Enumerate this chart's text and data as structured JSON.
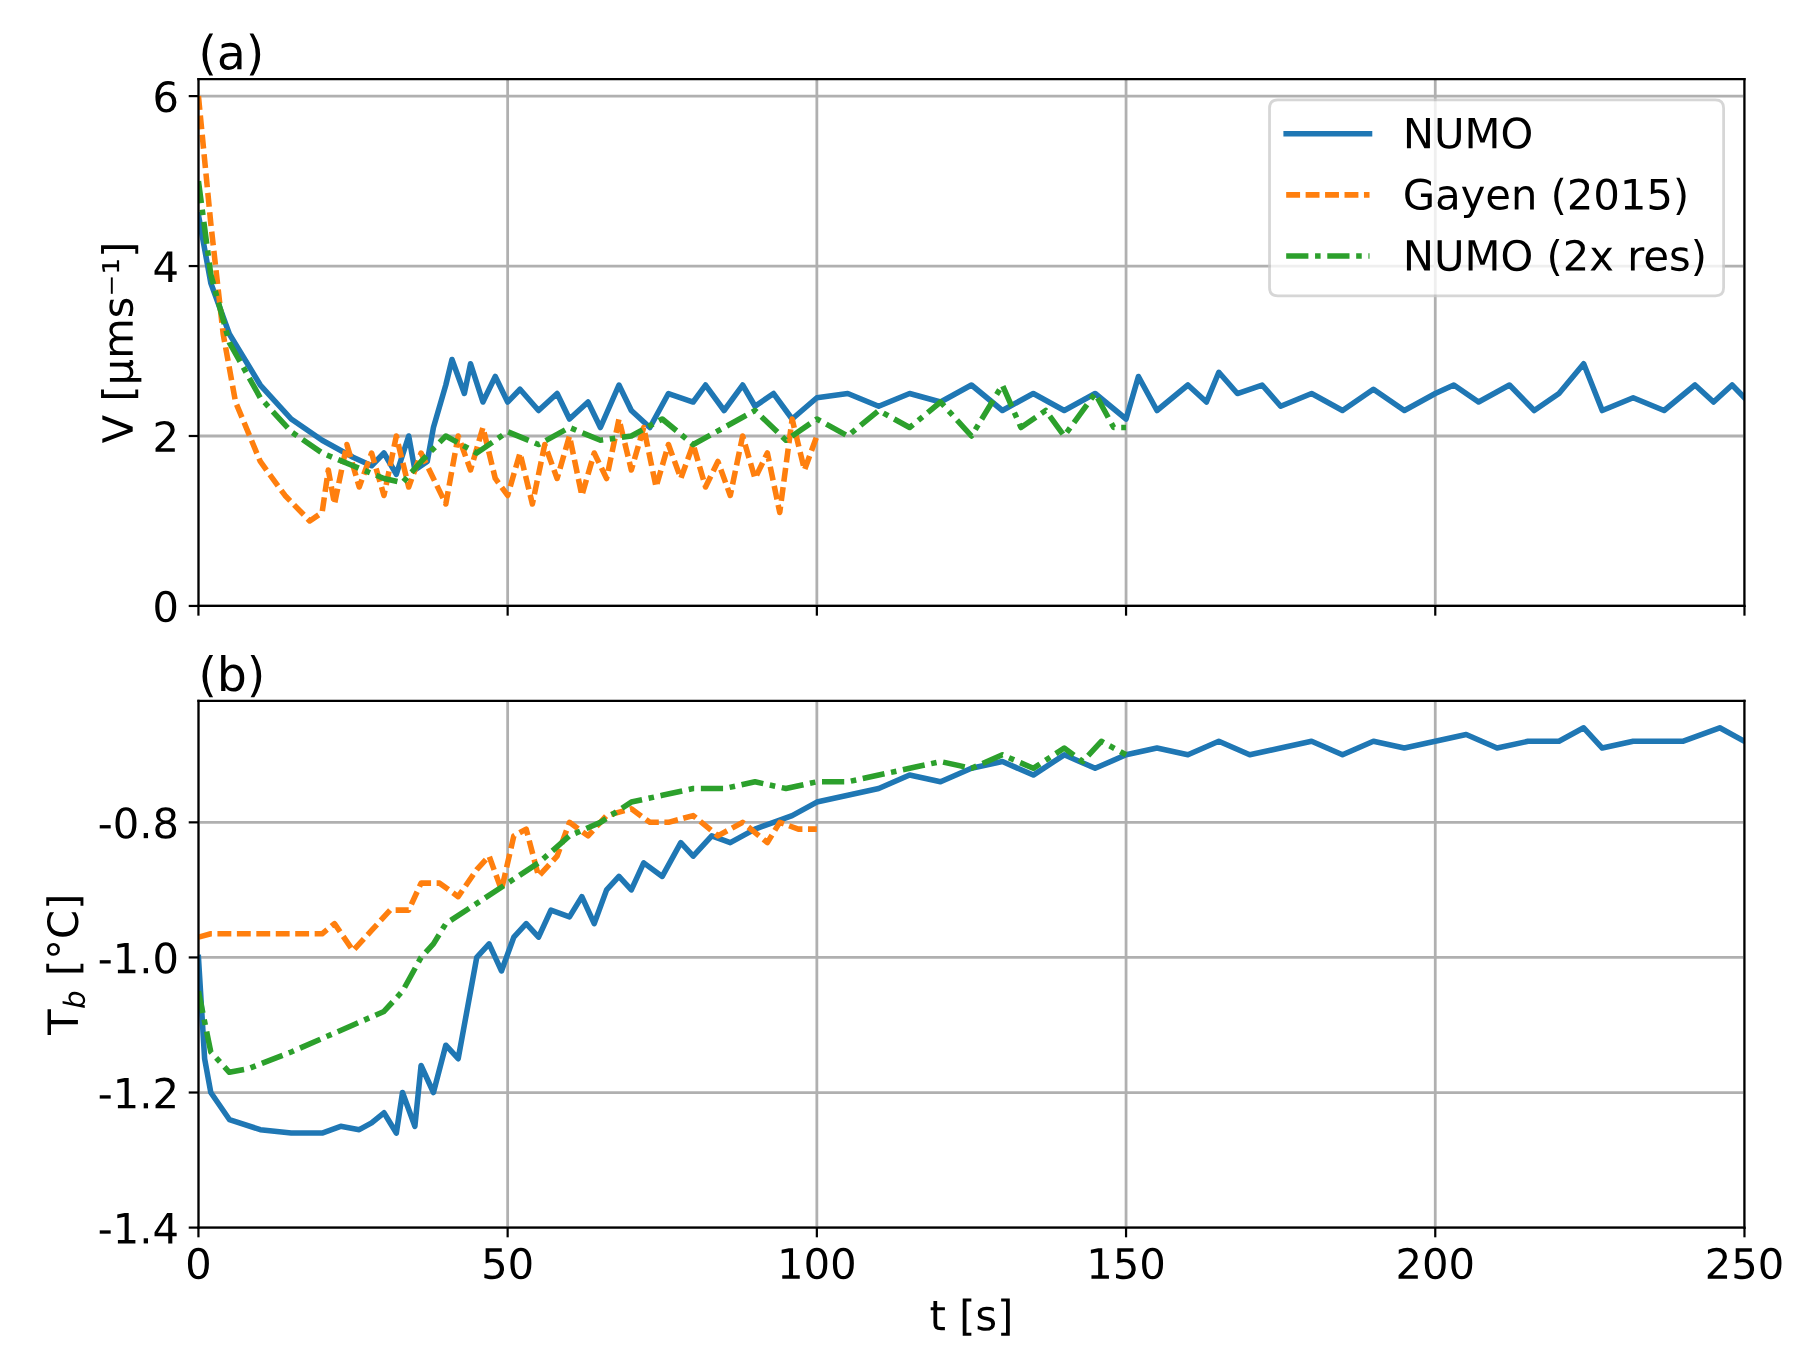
{
  "chart_data": [
    {
      "type": "line",
      "title": "(a)",
      "ylabel": "V [μms⁻¹]",
      "xlim": [
        0,
        250
      ],
      "xticks": [
        0,
        50,
        100,
        150,
        200,
        250
      ],
      "ylim": [
        0,
        6.2
      ],
      "yticks": [
        0,
        2,
        4,
        6
      ],
      "tick_labels": "y",
      "grid": true,
      "legend": "top right",
      "series": [
        {
          "name": "NUMO",
          "color": "#1f77b4",
          "line_style": "solid",
          "x": [
            0,
            2,
            5,
            10,
            15,
            20,
            25,
            28,
            30,
            32,
            34,
            35,
            37,
            38,
            40,
            41,
            43,
            44,
            46,
            48,
            50,
            52,
            55,
            58,
            60,
            63,
            65,
            68,
            70,
            73,
            76,
            80,
            82,
            85,
            88,
            90,
            93,
            96,
            100,
            105,
            110,
            115,
            120,
            125,
            130,
            135,
            140,
            145,
            150,
            152,
            155,
            160,
            163,
            165,
            168,
            172,
            175,
            180,
            185,
            190,
            195,
            200,
            203,
            207,
            212,
            216,
            220,
            224,
            227,
            232,
            237,
            242,
            245,
            248,
            250
          ],
          "values": [
            4.6,
            3.8,
            3.2,
            2.6,
            2.2,
            1.95,
            1.75,
            1.65,
            1.8,
            1.55,
            2.0,
            1.6,
            1.7,
            2.1,
            2.6,
            2.9,
            2.5,
            2.85,
            2.4,
            2.7,
            2.4,
            2.55,
            2.3,
            2.5,
            2.2,
            2.4,
            2.1,
            2.6,
            2.3,
            2.1,
            2.5,
            2.4,
            2.6,
            2.3,
            2.6,
            2.35,
            2.5,
            2.2,
            2.45,
            2.5,
            2.35,
            2.5,
            2.4,
            2.6,
            2.3,
            2.5,
            2.3,
            2.5,
            2.2,
            2.7,
            2.3,
            2.6,
            2.4,
            2.75,
            2.5,
            2.6,
            2.35,
            2.5,
            2.3,
            2.55,
            2.3,
            2.5,
            2.6,
            2.4,
            2.6,
            2.3,
            2.5,
            2.85,
            2.3,
            2.45,
            2.3,
            2.6,
            2.4,
            2.6,
            2.45
          ]
        },
        {
          "name": "Gayen (2015)",
          "color": "#ff7f0e",
          "line_style": "dashed",
          "x": [
            0,
            2,
            4,
            6,
            10,
            14,
            18,
            20,
            21,
            22,
            24,
            26,
            28,
            30,
            32,
            34,
            36,
            38,
            40,
            42,
            44,
            46,
            48,
            50,
            52,
            54,
            56,
            58,
            60,
            62,
            64,
            66,
            68,
            70,
            72,
            74,
            76,
            78,
            80,
            82,
            84,
            86,
            88,
            90,
            92,
            94,
            96,
            98,
            100
          ],
          "values": [
            6.0,
            4.5,
            3.2,
            2.4,
            1.7,
            1.3,
            1.0,
            1.1,
            1.6,
            1.2,
            1.9,
            1.4,
            1.8,
            1.3,
            2.0,
            1.4,
            1.8,
            1.5,
            1.2,
            2.0,
            1.6,
            2.1,
            1.5,
            1.3,
            1.8,
            1.2,
            1.9,
            1.5,
            2.0,
            1.3,
            1.8,
            1.5,
            2.2,
            1.6,
            2.1,
            1.4,
            1.9,
            1.5,
            1.9,
            1.4,
            1.7,
            1.3,
            2.0,
            1.5,
            1.8,
            1.1,
            2.2,
            1.6,
            2.0
          ]
        },
        {
          "name": "NUMO (2x res)",
          "color": "#2ca02c",
          "line_style": "dashdot",
          "x": [
            0,
            2,
            5,
            10,
            15,
            20,
            25,
            30,
            33,
            36,
            40,
            45,
            50,
            55,
            60,
            65,
            70,
            75,
            80,
            85,
            90,
            95,
            100,
            105,
            110,
            115,
            120,
            125,
            130,
            133,
            137,
            140,
            145,
            148,
            150
          ],
          "values": [
            5.0,
            3.9,
            3.1,
            2.45,
            2.05,
            1.8,
            1.65,
            1.5,
            1.45,
            1.7,
            2.0,
            1.8,
            2.05,
            1.9,
            2.1,
            1.95,
            2.0,
            2.2,
            1.9,
            2.1,
            2.3,
            1.95,
            2.2,
            2.0,
            2.3,
            2.1,
            2.4,
            2.0,
            2.6,
            2.1,
            2.3,
            2.0,
            2.5,
            2.1,
            2.1
          ]
        }
      ]
    },
    {
      "type": "line",
      "title": "(b)",
      "xlabel": "t [s]",
      "ylabel": "T$_{b}$ [°C]",
      "xlim": [
        0,
        250
      ],
      "xticks": [
        0,
        50,
        100,
        150,
        200,
        250
      ],
      "ylim": [
        -1.4,
        -0.62
      ],
      "yticks": [
        {
          "value": -1.4,
          "label": "-1.4"
        },
        {
          "value": -1.2,
          "label": "-1.2"
        },
        {
          "value": -1.0,
          "label": "-1.0"
        },
        {
          "value": -0.8,
          "label": "-0.8"
        }
      ],
      "grid": true,
      "series": [
        {
          "color": "#1f77b4",
          "line_style": "solid",
          "x": [
            0,
            1,
            2,
            5,
            10,
            15,
            20,
            23,
            26,
            28,
            30,
            32,
            33,
            35,
            36,
            38,
            40,
            42,
            44,
            45,
            47,
            49,
            51,
            53,
            55,
            57,
            60,
            62,
            64,
            66,
            68,
            70,
            72,
            75,
            78,
            80,
            83,
            86,
            90,
            93,
            96,
            100,
            105,
            110,
            115,
            120,
            125,
            130,
            135,
            140,
            145,
            150,
            155,
            160,
            165,
            170,
            175,
            180,
            185,
            190,
            195,
            200,
            205,
            210,
            215,
            220,
            224,
            227,
            232,
            240,
            246,
            250
          ],
          "values": [
            -1.0,
            -1.15,
            -1.2,
            -1.24,
            -1.255,
            -1.26,
            -1.26,
            -1.25,
            -1.255,
            -1.245,
            -1.23,
            -1.26,
            -1.2,
            -1.25,
            -1.16,
            -1.2,
            -1.13,
            -1.15,
            -1.05,
            -1.0,
            -0.98,
            -1.02,
            -0.97,
            -0.95,
            -0.97,
            -0.93,
            -0.94,
            -0.91,
            -0.95,
            -0.9,
            -0.88,
            -0.9,
            -0.86,
            -0.88,
            -0.83,
            -0.85,
            -0.82,
            -0.83,
            -0.81,
            -0.8,
            -0.79,
            -0.77,
            -0.76,
            -0.75,
            -0.73,
            -0.74,
            -0.72,
            -0.71,
            -0.73,
            -0.7,
            -0.72,
            -0.7,
            -0.69,
            -0.7,
            -0.68,
            -0.7,
            -0.69,
            -0.68,
            -0.7,
            -0.68,
            -0.69,
            -0.68,
            -0.67,
            -0.69,
            -0.68,
            -0.68,
            -0.66,
            -0.69,
            -0.68,
            -0.68,
            -0.66,
            -0.68
          ]
        },
        {
          "color": "#ff7f0e",
          "line_style": "dashed",
          "x": [
            0,
            2,
            10,
            20,
            22,
            25,
            28,
            31,
            34,
            36,
            39,
            42,
            45,
            47,
            49,
            51,
            53,
            55,
            58,
            60,
            63,
            66,
            70,
            73,
            76,
            80,
            84,
            88,
            92,
            94,
            97,
            100
          ],
          "values": [
            -0.97,
            -0.965,
            -0.965,
            -0.965,
            -0.95,
            -0.99,
            -0.96,
            -0.93,
            -0.93,
            -0.89,
            -0.89,
            -0.91,
            -0.87,
            -0.85,
            -0.9,
            -0.82,
            -0.81,
            -0.88,
            -0.85,
            -0.8,
            -0.82,
            -0.79,
            -0.78,
            -0.8,
            -0.8,
            -0.79,
            -0.82,
            -0.8,
            -0.83,
            -0.8,
            -0.81,
            -0.81
          ]
        },
        {
          "color": "#2ca02c",
          "line_style": "dashdot",
          "x": [
            0,
            2,
            5,
            8,
            15,
            20,
            25,
            30,
            33,
            36,
            38,
            40,
            45,
            50,
            55,
            60,
            65,
            70,
            75,
            80,
            85,
            90,
            95,
            100,
            105,
            110,
            115,
            120,
            125,
            130,
            135,
            140,
            143,
            146,
            150
          ],
          "values": [
            -1.05,
            -1.14,
            -1.17,
            -1.165,
            -1.14,
            -1.12,
            -1.1,
            -1.08,
            -1.05,
            -1.0,
            -0.98,
            -0.95,
            -0.92,
            -0.89,
            -0.86,
            -0.82,
            -0.8,
            -0.77,
            -0.76,
            -0.75,
            -0.75,
            -0.74,
            -0.75,
            -0.74,
            -0.74,
            -0.73,
            -0.72,
            -0.71,
            -0.72,
            -0.7,
            -0.72,
            -0.69,
            -0.71,
            -0.68,
            -0.7
          ]
        }
      ]
    }
  ]
}
